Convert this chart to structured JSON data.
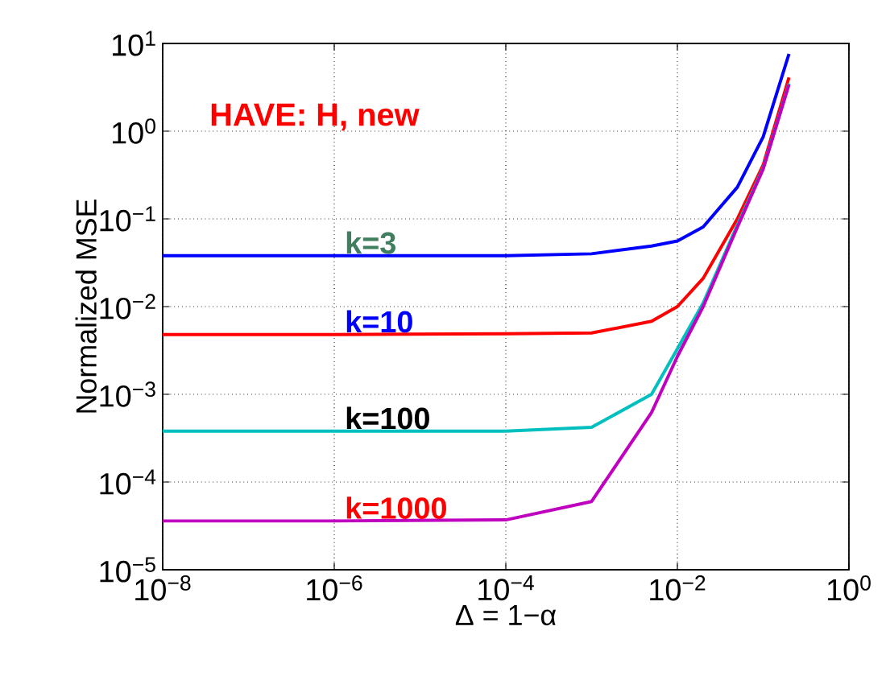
{
  "chart_data": {
    "type": "line",
    "xlabel": "Δ = 1−α",
    "ylabel": "Normalized MSE",
    "annotations": [
      "HAVE:   H,  new",
      {
        "text": "k=3",
        "y": 0.038
      },
      {
        "text": "k=10",
        "y": 0.0048
      },
      {
        "text": "k=100",
        "y": 0.00038
      },
      {
        "text": "k=1000",
        "y": 3.6e-05
      }
    ],
    "x": [
      1e-08,
      1e-06,
      0.0001,
      0.001,
      0.005,
      0.01,
      0.02,
      0.05,
      0.1,
      0.2
    ],
    "series": [
      {
        "color": "#0000ff",
        "values": [
          0.038,
          0.038,
          0.038,
          0.04,
          0.049,
          0.056,
          0.081,
          0.23,
          0.86,
          7.6
        ]
      },
      {
        "color": "#ff0000",
        "values": [
          0.0048,
          0.0048,
          0.0049,
          0.005,
          0.0068,
          0.01,
          0.021,
          0.1,
          0.41,
          4.1
        ]
      },
      {
        "color": "#00bfbf",
        "values": [
          0.00038,
          0.00038,
          0.00038,
          0.00042,
          0.001,
          0.0033,
          0.011,
          0.085,
          0.38,
          3.5
        ]
      },
      {
        "color": "#bf00bf",
        "values": [
          3.6e-05,
          3.6e-05,
          3.7e-05,
          6e-05,
          0.00062,
          0.0027,
          0.01,
          0.08,
          0.37,
          3.4
        ]
      }
    ],
    "log": "xy",
    "grid": true,
    "legend": false,
    "line_style": "solid",
    "marker": "none",
    "xlim": [
      1e-08,
      1
    ],
    "xticks": [
      {
        "value": 1e-08,
        "label": "10$^{−8}$"
      },
      {
        "value": 1e-06,
        "label": "10$^{−6}$"
      },
      {
        "value": 0.0001,
        "label": "10$^{−4}$"
      },
      {
        "value": 0.01,
        "label": "10$^{−2}$"
      },
      {
        "value": 1,
        "label": "10$^{0}$"
      }
    ],
    "ylim": [
      1e-05,
      10
    ],
    "yticks": [
      {
        "value": 1e-05,
        "label": "10$^{−5}$"
      },
      {
        "value": 0.0001,
        "label": "10$^{−4}$"
      },
      {
        "value": 0.001,
        "label": "10$^{−3}$"
      },
      {
        "value": 0.01,
        "label": "10$^{−2}$"
      },
      {
        "value": 0.1,
        "label": "10$^{−1}$"
      },
      {
        "value": 1,
        "label": "10$^{0}$"
      },
      {
        "value": 10,
        "label": "10$^{1}$"
      }
    ]
  }
}
